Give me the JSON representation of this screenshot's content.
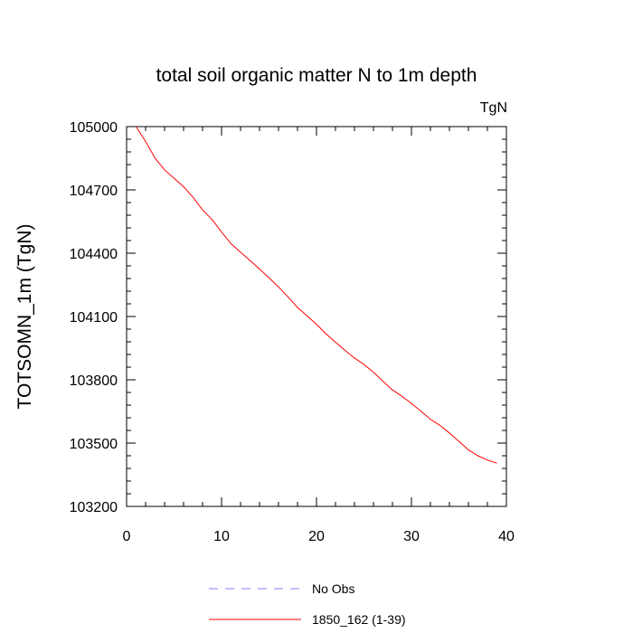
{
  "chart_data": {
    "type": "line",
    "title": "total soil organic matter N to 1m depth",
    "units_label": "TgN",
    "ylabel": "TOTSOMN_1m  (TgN)",
    "xlabel": "",
    "xlim": [
      0,
      40
    ],
    "ylim": [
      103200,
      105000
    ],
    "x_ticks": [
      0,
      10,
      20,
      30,
      40
    ],
    "y_ticks": [
      103200,
      103500,
      103800,
      104100,
      104400,
      104700,
      105000
    ],
    "grid": false,
    "legend_position": "bottom",
    "series": [
      {
        "name": "No Obs",
        "color": "#8080ff",
        "style": "dashed",
        "x": [],
        "y": []
      },
      {
        "name": "1850_162 (1-39)",
        "color": "#ff0000",
        "style": "solid",
        "x": [
          1,
          2,
          3,
          4,
          5,
          6,
          7,
          8,
          9,
          10,
          11,
          12,
          13,
          14,
          15,
          16,
          17,
          18,
          19,
          20,
          21,
          22,
          23,
          24,
          25,
          26,
          27,
          28,
          29,
          30,
          31,
          32,
          33,
          34,
          35,
          36,
          37,
          38,
          39
        ],
        "y": [
          105000,
          104930,
          104850,
          104795,
          104755,
          104715,
          104665,
          104605,
          104560,
          104500,
          104445,
          104405,
          104365,
          104325,
          104283,
          104240,
          104193,
          104143,
          104103,
          104063,
          104018,
          103978,
          103940,
          103903,
          103873,
          103836,
          103793,
          103752,
          103722,
          103688,
          103651,
          103613,
          103584,
          103548,
          103508,
          103468,
          103440,
          103420,
          103405
        ]
      }
    ]
  }
}
